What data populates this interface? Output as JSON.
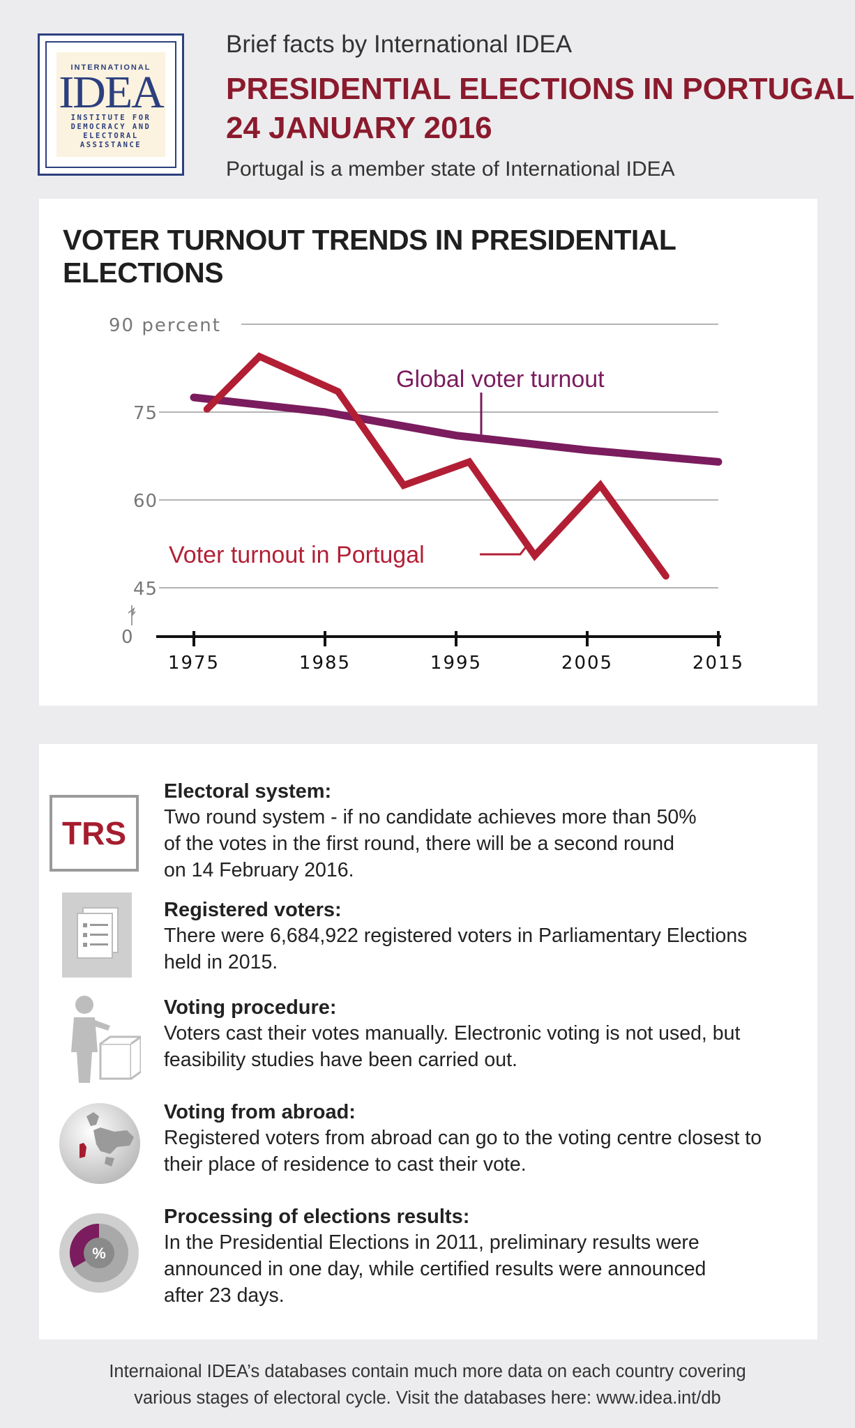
{
  "logo": {
    "top": "INTERNATIONAL",
    "main": "IDEA",
    "sub": [
      "INSTITUTE FOR",
      "DEMOCRACY AND",
      "ELECTORAL",
      "ASSISTANCE"
    ]
  },
  "header": {
    "brief": "Brief facts by International IDEA",
    "title_line1": "PRESIDENTIAL ELECTIONS IN PORTUGAL",
    "title_line2": "24 JANUARY 2016",
    "member": "Portugal is a member state of International IDEA"
  },
  "chart_data": {
    "type": "line",
    "title": "VOTER TURNOUT TRENDS IN PRESIDENTIAL ELECTIONS",
    "y_tick_labels": [
      "90 percent",
      "75",
      "60",
      "45",
      "0"
    ],
    "x_tick_labels": [
      "1975",
      "1985",
      "1995",
      "2005",
      "2015"
    ],
    "xlim": [
      1975,
      2015
    ],
    "ylim": [
      45,
      90
    ],
    "axis_break": true,
    "grid": true,
    "series": [
      {
        "name": "Global voter turnout",
        "color": "#7a1c5d",
        "x": [
          1975,
          1985,
          1995,
          2005,
          2015
        ],
        "y": [
          77.5,
          75.0,
          71.0,
          68.5,
          66.5
        ]
      },
      {
        "name": "Voter turnout in Portugal",
        "color": "#b21f35",
        "x": [
          1976,
          1980,
          1986,
          1991,
          1996,
          2001,
          2006,
          2011
        ],
        "y": [
          75.5,
          84.5,
          78.5,
          62.5,
          66.5,
          50.5,
          62.5,
          47.0
        ]
      }
    ]
  },
  "info": {
    "electoral": {
      "badge": "TRS",
      "heading": "Electoral system:",
      "body": "Two round system -  if no candidate achieves more than 50%\nof the votes in the first round, there will be a second round\non 14 February 2016."
    },
    "registered": {
      "heading": "Registered voters:",
      "body": "There were 6,684,922 registered voters in Parliamentary Elections\nheld in 2015."
    },
    "procedure": {
      "heading": "Voting procedure:",
      "body": "Voters cast their votes manually.  Electronic voting is not used, but\nfeasibility studies have been carried out."
    },
    "abroad": {
      "heading": "Voting from abroad:",
      "body": "Registered voters from abroad can go to the voting centre closest to\ntheir place of residence to cast their vote."
    },
    "processing": {
      "heading": "Processing of elections results:",
      "body": "In the Presidential Elections in 2011, preliminary results were\nannounced in one day, while certified results were announced\nafter 23 days.",
      "icon_symbol": "%"
    }
  },
  "footer": {
    "line1": "Internaional IDEA’s databases contain much more data on each country covering",
    "line2": "various stages of electoral cycle. Visit the databases here: www.idea.int/db"
  },
  "icons": [
    "document-icon",
    "voter-ballot-icon",
    "globe-icon",
    "pie-percent-icon"
  ]
}
